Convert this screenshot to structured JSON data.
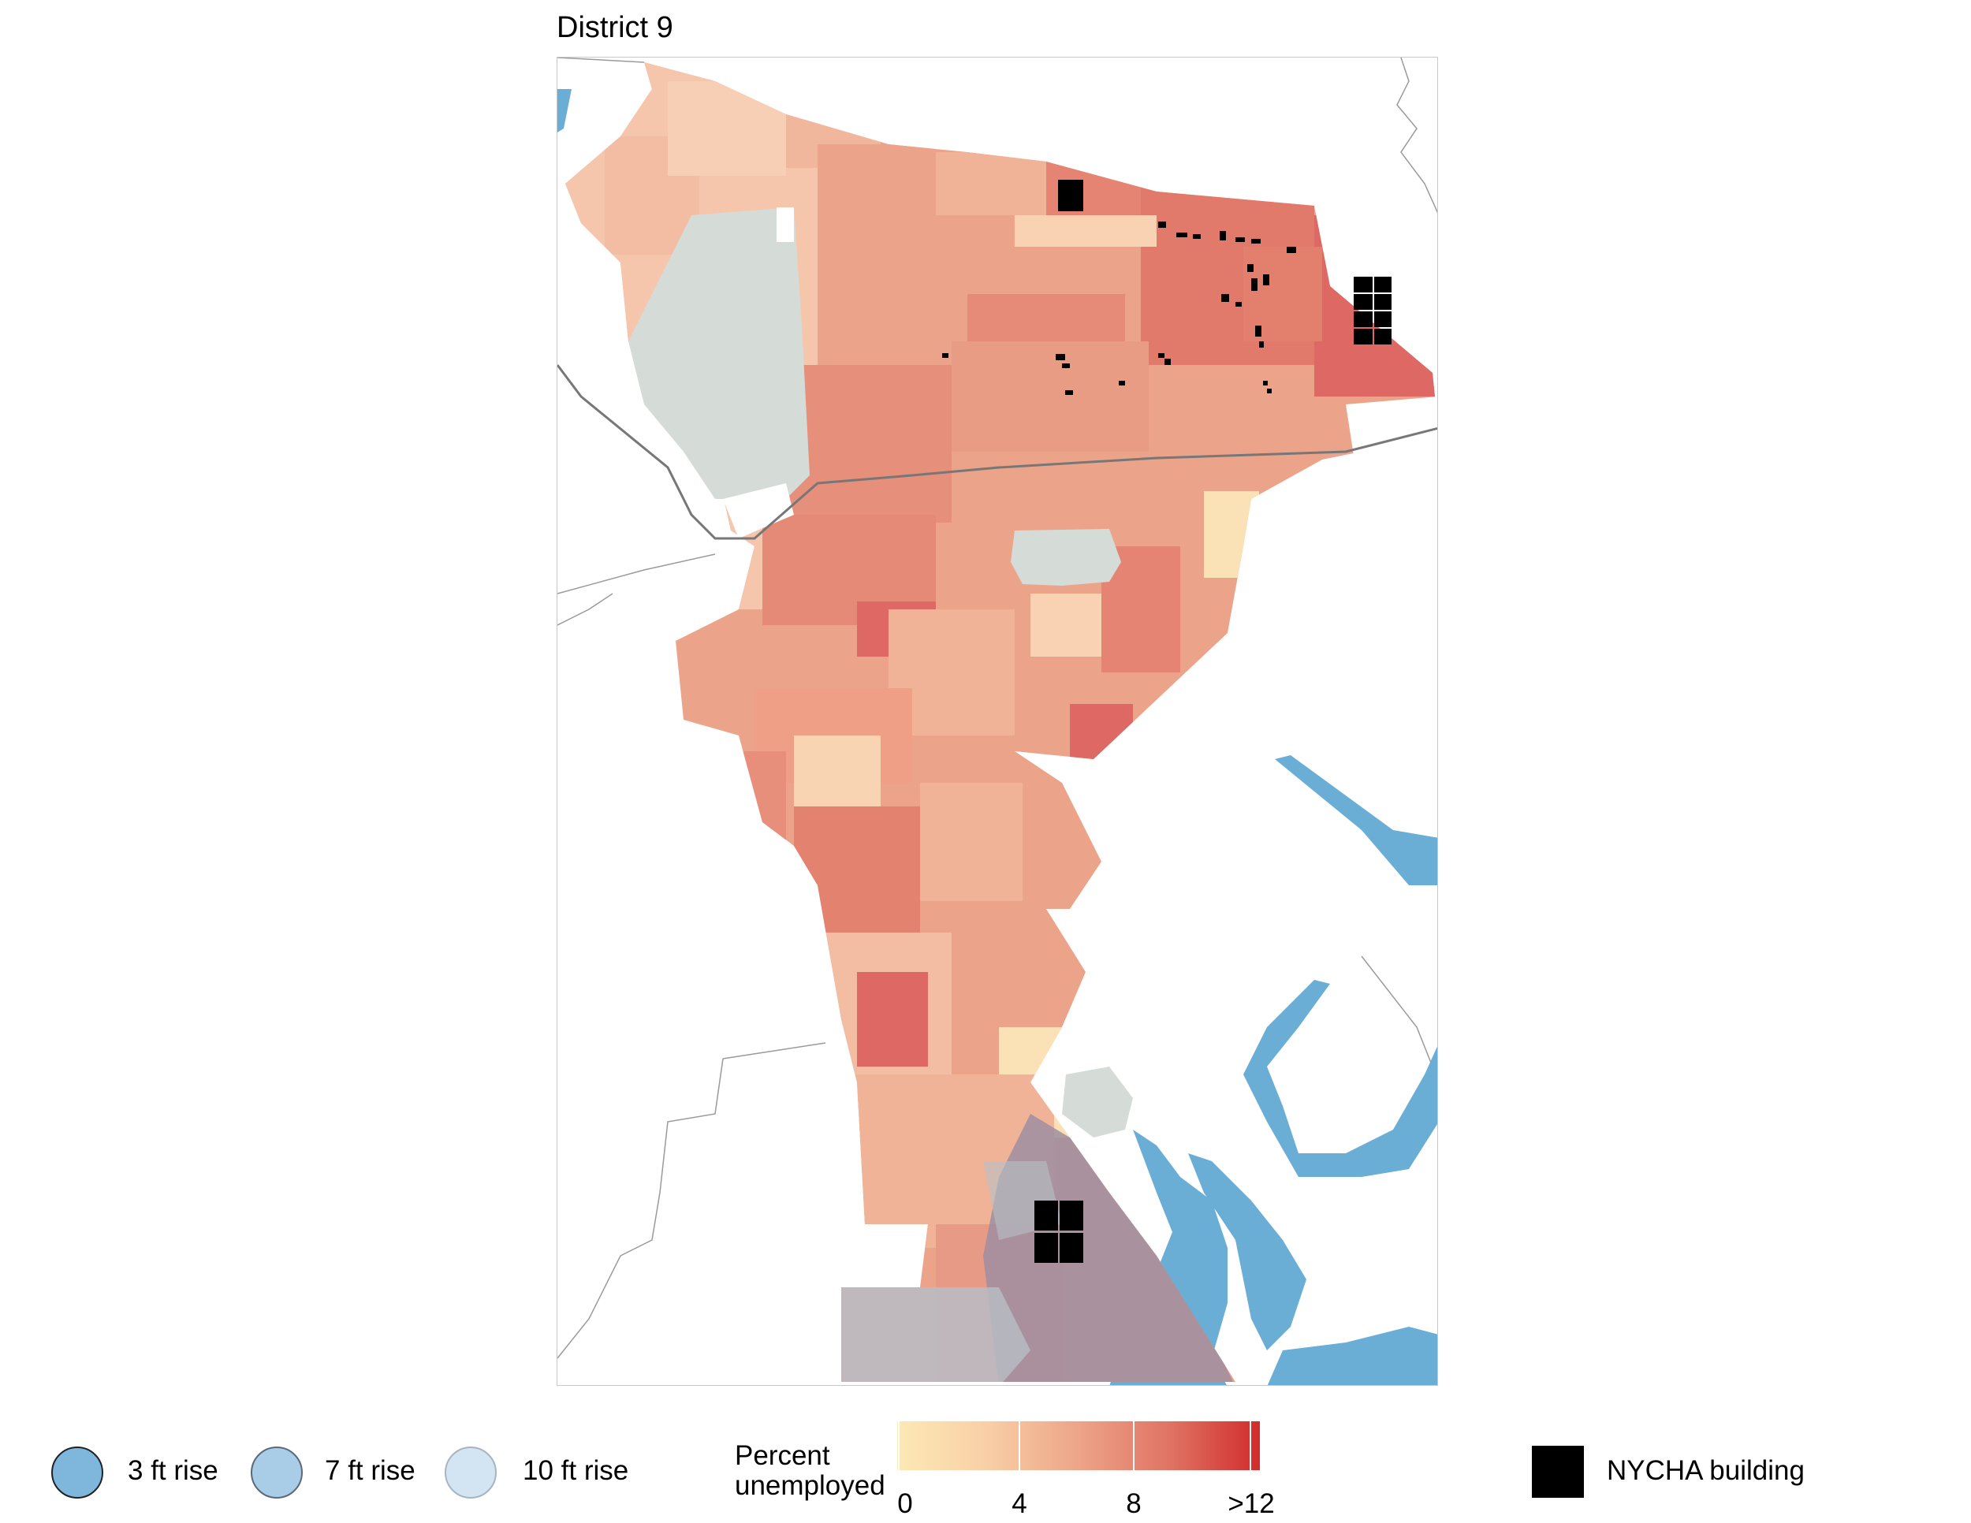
{
  "title": "District 9",
  "legend": {
    "flood_scenarios": [
      {
        "label": "3 ft rise",
        "color": "#7eb6dc"
      },
      {
        "label": "7 ft rise",
        "color": "#a9cde6"
      },
      {
        "label": "10 ft rise",
        "color": "#d3e5f2"
      }
    ],
    "unemployment": {
      "title_line1": "Percent",
      "title_line2": "unemployed",
      "ticks": [
        "0",
        "4",
        "8",
        ">12"
      ],
      "color_low": "#fde9b4",
      "color_high": "#d12c2c"
    },
    "nycha": {
      "label": "NYCHA building",
      "color": "#000000"
    }
  },
  "colors": {
    "water": "#6aaed6",
    "park": "#d5dcd8",
    "boundary": "#9a9a9a",
    "rail": "#777777"
  }
}
